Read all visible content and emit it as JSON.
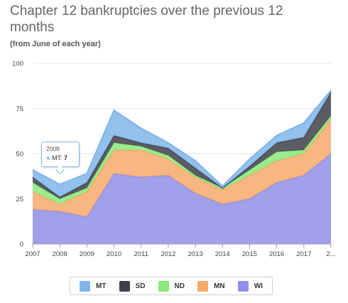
{
  "chart_data": {
    "type": "area",
    "stacked": true,
    "title": "Chapter 12 bankruptcies over the previous 12 months",
    "subtitle": "(from June of each year)",
    "xlabel": "",
    "ylabel": "",
    "categories": [
      "2007",
      "2008",
      "2009",
      "2010",
      "2011",
      "2012",
      "2013",
      "2014",
      "2015",
      "2016",
      "2017",
      "2..."
    ],
    "ylim": [
      0,
      100
    ],
    "yticks": [
      "0",
      "25",
      "50",
      "75",
      "100"
    ],
    "grid": true,
    "legend_position": "bottom",
    "series": [
      {
        "name": "WI",
        "color": "#8f8fe8",
        "values": [
          19,
          18,
          15,
          39,
          37,
          38,
          28,
          22,
          25,
          34,
          38,
          50
        ]
      },
      {
        "name": "MN",
        "color": "#f7a96b",
        "values": [
          10,
          4,
          14,
          13,
          15,
          9,
          9,
          8,
          13,
          12,
          12,
          19
        ]
      },
      {
        "name": "ND",
        "color": "#8be87a",
        "values": [
          5,
          3,
          2,
          4,
          2,
          2,
          1,
          1,
          3,
          5,
          2,
          2
        ]
      },
      {
        "name": "SD",
        "color": "#3f3f4a",
        "values": [
          3,
          1,
          3,
          4,
          2,
          4,
          4,
          0,
          2,
          5,
          7,
          13
        ]
      },
      {
        "name": "MT",
        "color": "#80b5ea",
        "values": [
          4,
          7,
          5,
          14,
          8,
          3,
          4,
          1,
          4,
          4,
          8,
          1
        ]
      }
    ],
    "tooltip": {
      "year": "2008",
      "series": "MT",
      "value": "7"
    }
  }
}
